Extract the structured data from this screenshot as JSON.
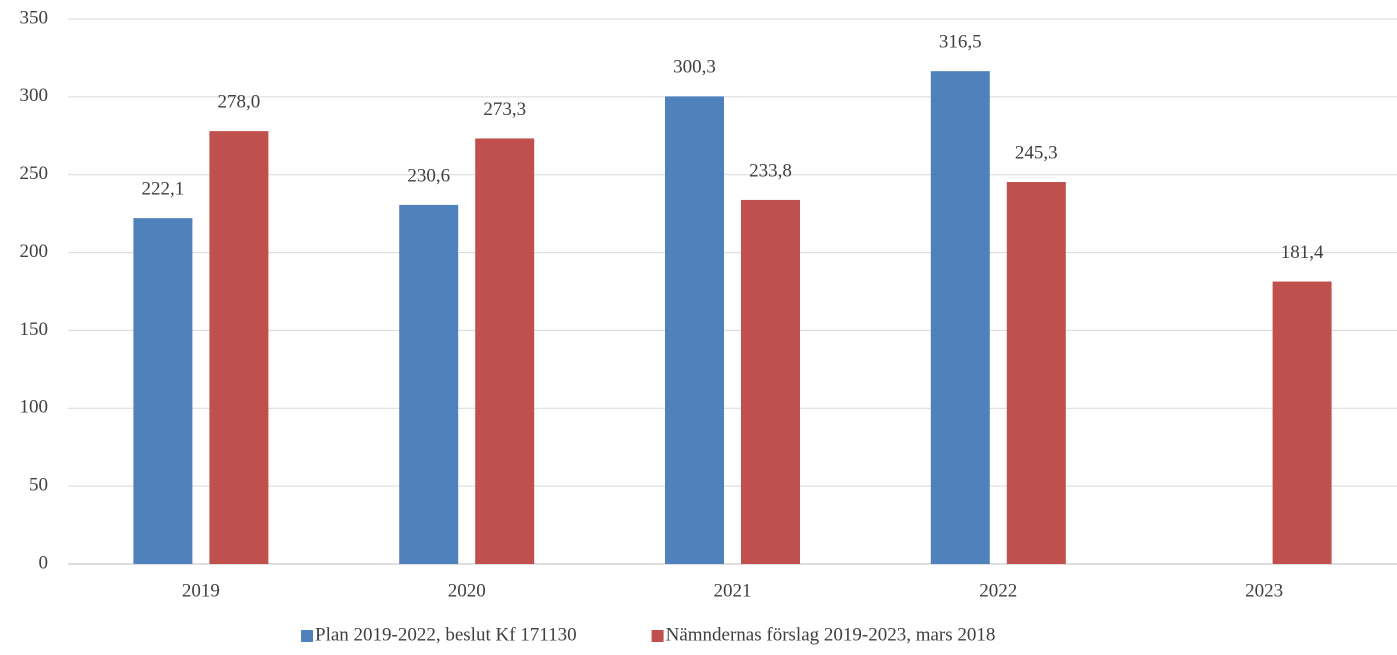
{
  "chart_data": {
    "type": "bar",
    "categories": [
      "2019",
      "2020",
      "2021",
      "2022",
      "2023"
    ],
    "series": [
      {
        "name": "Plan 2019-2022, beslut Kf 171130",
        "color": "#4f81bd",
        "values": [
          222.1,
          230.6,
          300.3,
          316.5,
          null
        ],
        "value_labels": [
          "222,1",
          "230,6",
          "300,3",
          "316,5",
          null
        ]
      },
      {
        "name": "Nämndernas förslag 2019-2023, mars 2018",
        "color": "#c0504d",
        "values": [
          278.0,
          273.3,
          233.8,
          245.3,
          181.4
        ],
        "value_labels": [
          "278,0",
          "273,3",
          "233,8",
          "245,3",
          "181,4"
        ]
      }
    ],
    "ylim": [
      0,
      350
    ],
    "yticks": [
      0,
      50,
      100,
      150,
      200,
      250,
      300,
      350
    ],
    "grid": true,
    "legend": "bottom"
  }
}
